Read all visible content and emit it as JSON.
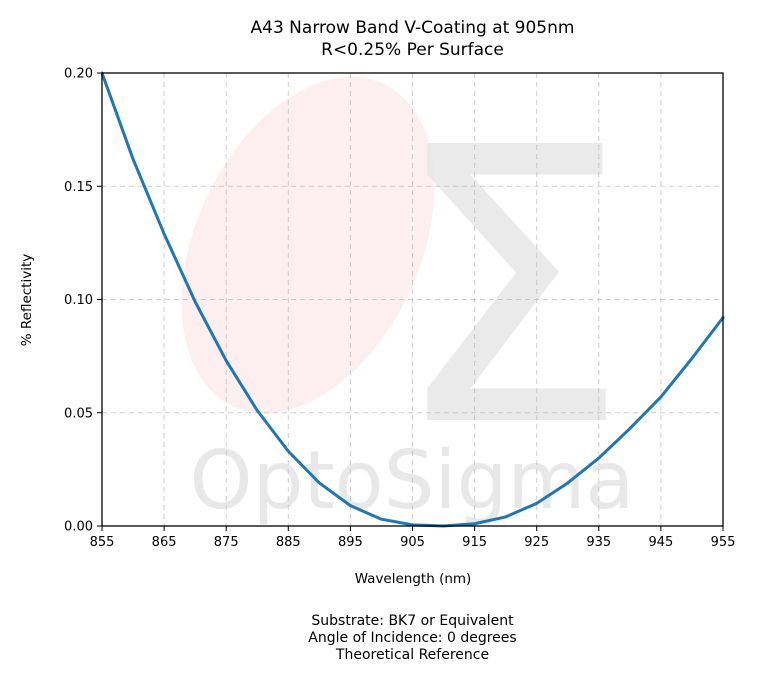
{
  "chart_data": {
    "type": "line",
    "title": "A43 Narrow Band V-Coating at 905nm",
    "subtitle": "R<0.25% Per Surface",
    "xlabel": "Wavelength (nm)",
    "ylabel": "% Reflectivity",
    "xlim": [
      855,
      955
    ],
    "ylim": [
      0,
      0.2
    ],
    "xticks": [
      855,
      865,
      875,
      885,
      895,
      905,
      915,
      925,
      935,
      945,
      955
    ],
    "yticks": [
      0.0,
      0.05,
      0.1,
      0.15,
      0.2
    ],
    "ytick_labels": [
      "0.00",
      "0.05",
      "0.10",
      "0.15",
      "0.20"
    ],
    "grid": true,
    "series": [
      {
        "color": "#1f77b4",
        "x": [
          855,
          860,
          865,
          870,
          875,
          880,
          885,
          890,
          895,
          900,
          905,
          910,
          915,
          920,
          925,
          930,
          935,
          940,
          945,
          950,
          955
        ],
        "y": [
          0.2,
          0.162,
          0.129,
          0.099,
          0.073,
          0.051,
          0.033,
          0.019,
          0.009,
          0.003,
          0.0005,
          0.0,
          0.001,
          0.004,
          0.01,
          0.019,
          0.03,
          0.043,
          0.057,
          0.074,
          0.092
        ]
      }
    ]
  },
  "watermark": {
    "text": "OptoSigma",
    "symbol": "Σ"
  },
  "footer": {
    "line1": "Substrate: BK7 or Equivalent",
    "line2": "Angle of Incidence: 0 degrees",
    "line3": "Theoretical Reference"
  }
}
